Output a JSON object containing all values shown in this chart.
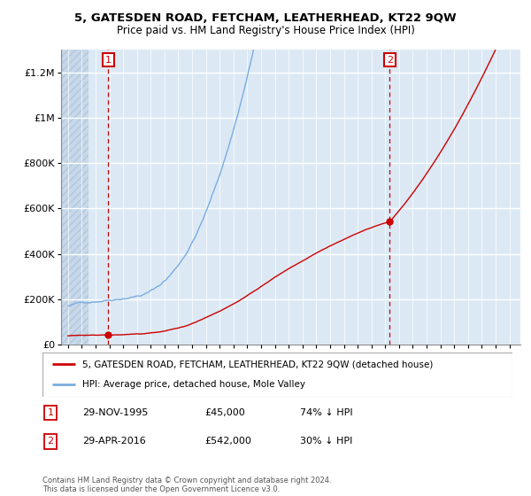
{
  "title": "5, GATESDEN ROAD, FETCHAM, LEATHERHEAD, KT22 9QW",
  "subtitle": "Price paid vs. HM Land Registry's House Price Index (HPI)",
  "hpi_label": "HPI: Average price, detached house, Mole Valley",
  "property_label": "5, GATESDEN ROAD, FETCHAM, LEATHERHEAD, KT22 9QW (detached house)",
  "sale1_date": "29-NOV-1995",
  "sale1_price": 45000,
  "sale1_pct": "74% ↓ HPI",
  "sale2_date": "29-APR-2016",
  "sale2_price": 542000,
  "sale2_pct": "30% ↓ HPI",
  "property_color": "#cc0000",
  "hpi_color": "#7aace0",
  "bg_color": "#dce9f5",
  "hatch_color": "#c8d8e8",
  "ylim": [
    0,
    1300000
  ],
  "yticks": [
    0,
    200000,
    400000,
    600000,
    800000,
    1000000,
    1200000
  ],
  "sale1_year": 1995.92,
  "sale2_year": 2016.33,
  "footnote": "Contains HM Land Registry data © Crown copyright and database right 2024.\nThis data is licensed under the Open Government Licence v3.0."
}
